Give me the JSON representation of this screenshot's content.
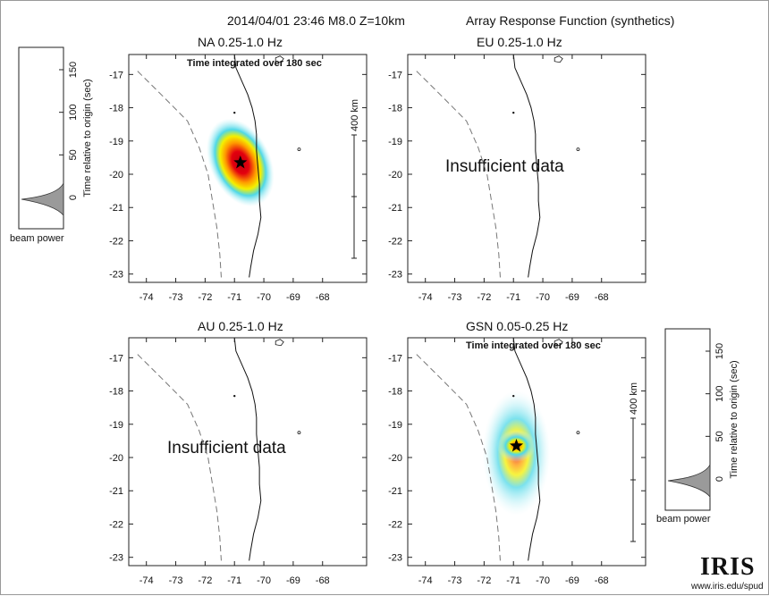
{
  "header": {
    "event": "2014/04/01 23:46  M8.0  Z=10km",
    "function": "Array Response Function (synthetics)"
  },
  "panels": [
    {
      "title": "NA  0.25-1.0 Hz",
      "subtitle": "Time integrated over 180 sec",
      "message": "",
      "scale_label": "400 km"
    },
    {
      "title": "EU  0.25-1.0 Hz",
      "subtitle": "",
      "message": "Insufficient data",
      "scale_label": ""
    },
    {
      "title": "AU  0.25-1.0 Hz",
      "subtitle": "",
      "message": "Insufficient data",
      "scale_label": ""
    },
    {
      "title": "GSN  0.05-0.25 Hz",
      "subtitle": "Time integrated over 180 sec",
      "message": "",
      "scale_label": "400 km"
    }
  ],
  "axes": {
    "x_ticks": [
      "-74",
      "-73",
      "-72",
      "-71",
      "-70",
      "-69",
      "-68"
    ],
    "y_ticks": [
      "-17",
      "-18",
      "-19",
      "-20",
      "-21",
      "-22",
      "-23"
    ]
  },
  "beam": {
    "ylabel": "Time relative to origin (sec)",
    "ticks": [
      "150",
      "100",
      "50",
      "0"
    ],
    "xlabel": "beam power"
  },
  "colors": {
    "frame": "#222222",
    "coast": "#111111",
    "trench": "#777777",
    "peak_red": "#e3000f",
    "mid_orange": "#ff9a00",
    "mid_yellow": "#f4f000",
    "edge_cyan": "#4fd8e8",
    "star": "#000000"
  },
  "logo": {
    "text": "IRIS",
    "url": "www.iris.edu/spud"
  }
}
